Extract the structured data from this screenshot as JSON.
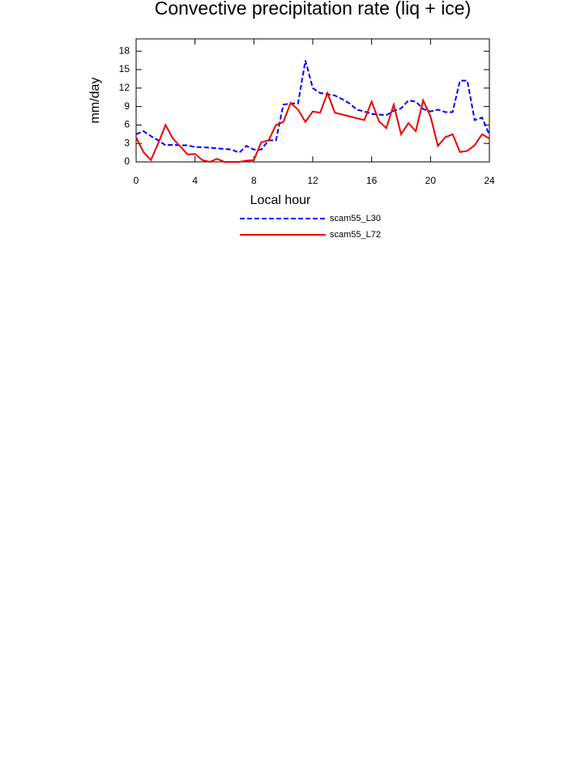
{
  "chart_data": {
    "type": "line",
    "title": "Convective precipitation rate (liq + ice)",
    "xlabel": "Local hour",
    "ylabel": "mm/day",
    "x": [
      0,
      0.5,
      1,
      1.5,
      2,
      2.5,
      3,
      3.5,
      4,
      4.5,
      5,
      5.5,
      6,
      6.5,
      7,
      7.5,
      8,
      8.5,
      9,
      9.5,
      10,
      10.5,
      11,
      11.5,
      12,
      12.5,
      13,
      13.5,
      14,
      14.5,
      15,
      15.5,
      16,
      16.5,
      17,
      17.5,
      18,
      18.5,
      19,
      19.5,
      20,
      20.5,
      21,
      21.5,
      22,
      22.5,
      23,
      23.5,
      24
    ],
    "series": [
      {
        "name": "scam55_L30",
        "color": "#0000ff",
        "dash": true,
        "values": [
          4.5,
          5.0,
          4.2,
          3.5,
          2.7,
          2.8,
          2.7,
          2.7,
          2.4,
          2.4,
          2.3,
          2.2,
          2.1,
          2.0,
          1.5,
          2.6,
          2.0,
          2.0,
          3.5,
          3.5,
          9.3,
          9.5,
          9.5,
          16.5,
          12,
          11.2,
          11,
          10.8,
          10.2,
          9.5,
          8.5,
          8.2,
          7.8,
          7.7,
          7.6,
          8.3,
          8.7,
          10,
          9.8,
          8.6,
          8.2,
          8.5,
          8.1,
          8.1,
          13.2,
          13.2,
          6.8,
          7.2,
          4.4
        ]
      },
      {
        "name": "scam55_L72",
        "color": "#ee0000",
        "dash": false,
        "values": [
          4.0,
          1.6,
          0.3,
          3.0,
          6.0,
          3.8,
          2.5,
          1.2,
          1.3,
          0.3,
          0,
          0.5,
          0,
          0,
          0,
          0.2,
          0.3,
          3.2,
          3.5,
          6.0,
          6.5,
          9.6,
          8.5,
          6.5,
          8.2,
          8.0,
          11.2,
          8.0,
          7.7,
          7.4,
          7.1,
          6.8,
          9.8,
          6.6,
          5.5,
          9.3,
          4.5,
          6.3,
          5.0,
          10.0,
          7.4,
          2.6,
          4.0,
          4.5,
          1.6,
          1.8,
          2.7,
          4.5,
          3.8
        ]
      }
    ],
    "xlim": [
      0,
      24
    ],
    "xticks": [
      0,
      4,
      8,
      12,
      16,
      20,
      24
    ],
    "ylim": [
      0,
      20
    ],
    "yticks": [
      0,
      3,
      6,
      9,
      12,
      15,
      18
    ]
  }
}
